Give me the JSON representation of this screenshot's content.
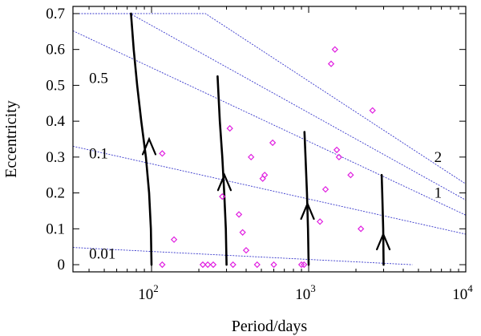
{
  "chart_data": {
    "type": "scatter",
    "title": "",
    "xlabel": "Period/days",
    "ylabel": "Eccentricity",
    "xscale": "log",
    "xlim": [
      31.6,
      10000
    ],
    "ylim": [
      -0.02,
      0.72
    ],
    "x_ticks": [
      {
        "value": 100,
        "base": "10",
        "exp": "2"
      },
      {
        "value": 1000,
        "base": "10",
        "exp": "3"
      },
      {
        "value": 10000,
        "base": "10",
        "exp": "4"
      }
    ],
    "y_ticks": [
      {
        "value": 0,
        "label": "0"
      },
      {
        "value": 0.1,
        "label": "0.1"
      },
      {
        "value": 0.2,
        "label": "0.2"
      },
      {
        "value": 0.3,
        "label": "0.3"
      },
      {
        "value": 0.4,
        "label": "0.4"
      },
      {
        "value": 0.5,
        "label": "0.5"
      },
      {
        "value": 0.6,
        "label": "0.6"
      },
      {
        "value": 0.7,
        "label": "0.7"
      }
    ],
    "colors": {
      "points": "#e020e0",
      "contours": "#3a3acc",
      "tracks": "#000000",
      "frame": "#000000"
    },
    "points": [
      {
        "x": 117,
        "y": 0.31
      },
      {
        "x": 117,
        "y": 0.0
      },
      {
        "x": 139,
        "y": 0.07
      },
      {
        "x": 212,
        "y": 0.0
      },
      {
        "x": 228,
        "y": 0.0
      },
      {
        "x": 247,
        "y": 0.0
      },
      {
        "x": 282,
        "y": 0.19
      },
      {
        "x": 315,
        "y": 0.38
      },
      {
        "x": 330,
        "y": 0.0
      },
      {
        "x": 360,
        "y": 0.14
      },
      {
        "x": 380,
        "y": 0.09
      },
      {
        "x": 400,
        "y": 0.04
      },
      {
        "x": 430,
        "y": 0.3
      },
      {
        "x": 470,
        "y": 0.0
      },
      {
        "x": 510,
        "y": 0.24
      },
      {
        "x": 525,
        "y": 0.25
      },
      {
        "x": 590,
        "y": 0.34
      },
      {
        "x": 600,
        "y": 0.0
      },
      {
        "x": 900,
        "y": 0.0
      },
      {
        "x": 935,
        "y": 0.0
      },
      {
        "x": 1180,
        "y": 0.12
      },
      {
        "x": 1280,
        "y": 0.21
      },
      {
        "x": 1390,
        "y": 0.56
      },
      {
        "x": 1470,
        "y": 0.6
      },
      {
        "x": 1510,
        "y": 0.32
      },
      {
        "x": 1560,
        "y": 0.3
      },
      {
        "x": 1850,
        "y": 0.25
      },
      {
        "x": 2150,
        "y": 0.1
      },
      {
        "x": 2550,
        "y": 0.43
      }
    ],
    "contours": [
      {
        "label": "0.01",
        "line": [
          [
            31.6,
            0.048
          ],
          [
            4570,
            0.0
          ]
        ],
        "label_pos": [
          40,
          0.03
        ]
      },
      {
        "label": "0.1",
        "line": [
          [
            31.6,
            0.33
          ],
          [
            10000,
            0.085
          ]
        ],
        "label_pos": [
          40,
          0.31
        ]
      },
      {
        "label": "0.5",
        "line": [
          [
            31.6,
            0.652
          ],
          [
            10000,
            0.138
          ]
        ],
        "label_pos": [
          40,
          0.52
        ]
      },
      {
        "label": "1",
        "line": [
          [
            31.6,
            0.7
          ],
          [
            73,
            0.7
          ],
          [
            10000,
            0.18
          ]
        ],
        "label_pos": [
          6300,
          0.2
        ]
      },
      {
        "label": "2",
        "line": [
          [
            31.6,
            0.7
          ],
          [
            220,
            0.7
          ],
          [
            10000,
            0.225
          ]
        ],
        "label_pos": [
          6300,
          0.3
        ]
      }
    ],
    "tracks": [
      {
        "points": [
          [
            100,
            0.0
          ],
          [
            99,
            0.1
          ],
          [
            96.5,
            0.2
          ],
          [
            92,
            0.3
          ],
          [
            86,
            0.4
          ],
          [
            81,
            0.5
          ],
          [
            77,
            0.6
          ],
          [
            74,
            0.7
          ]
        ],
        "arrow": [
          96.5,
          0.35
        ]
      },
      {
        "points": [
          [
            300,
            0.0
          ],
          [
            297,
            0.1
          ],
          [
            290,
            0.2
          ],
          [
            282,
            0.3
          ],
          [
            272,
            0.4
          ],
          [
            263,
            0.525
          ]
        ],
        "arrow": [
          291,
          0.25
        ]
      },
      {
        "points": [
          [
            1000,
            0.0
          ],
          [
            990,
            0.1
          ],
          [
            975,
            0.2
          ],
          [
            955,
            0.3
          ],
          [
            940,
            0.37
          ]
        ],
        "arrow": [
          983,
          0.17
        ]
      },
      {
        "points": [
          [
            3000,
            0.0
          ],
          [
            2980,
            0.1
          ],
          [
            2940,
            0.2
          ],
          [
            2915,
            0.25
          ]
        ],
        "arrow": [
          2985,
          0.085
        ]
      }
    ]
  }
}
